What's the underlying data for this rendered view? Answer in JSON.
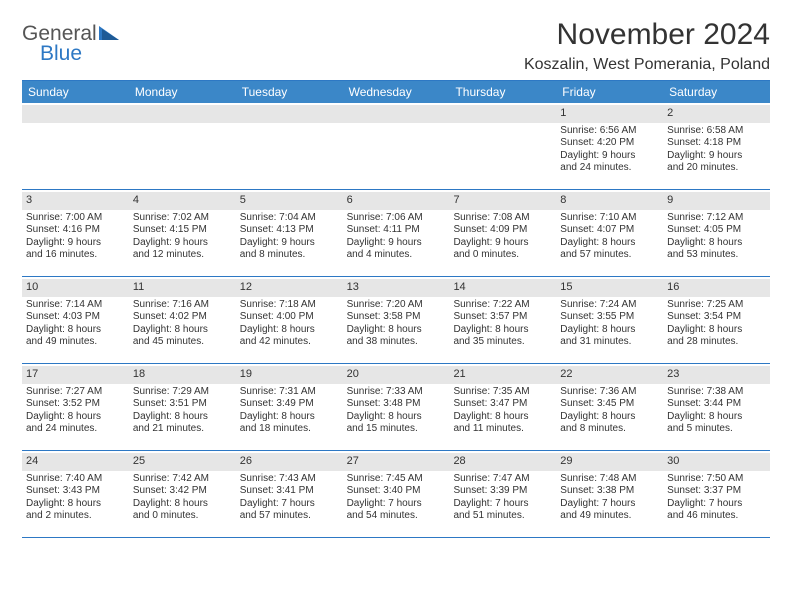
{
  "logo": {
    "text1": "General",
    "text2": "Blue",
    "triangle_color": "#2d78c4"
  },
  "title": "November 2024",
  "location": "Koszalin, West Pomerania, Poland",
  "colors": {
    "header_bg": "#3b87c8",
    "border": "#2d78c4",
    "daynum_bg": "#e6e6e6",
    "text": "#333333"
  },
  "day_names": [
    "Sunday",
    "Monday",
    "Tuesday",
    "Wednesday",
    "Thursday",
    "Friday",
    "Saturday"
  ],
  "weeks": [
    [
      {
        "n": "",
        "empty": true
      },
      {
        "n": "",
        "empty": true
      },
      {
        "n": "",
        "empty": true
      },
      {
        "n": "",
        "empty": true
      },
      {
        "n": "",
        "empty": true
      },
      {
        "n": "1",
        "sr": "Sunrise: 6:56 AM",
        "ss": "Sunset: 4:20 PM",
        "d1": "Daylight: 9 hours",
        "d2": "and 24 minutes."
      },
      {
        "n": "2",
        "sr": "Sunrise: 6:58 AM",
        "ss": "Sunset: 4:18 PM",
        "d1": "Daylight: 9 hours",
        "d2": "and 20 minutes."
      }
    ],
    [
      {
        "n": "3",
        "sr": "Sunrise: 7:00 AM",
        "ss": "Sunset: 4:16 PM",
        "d1": "Daylight: 9 hours",
        "d2": "and 16 minutes."
      },
      {
        "n": "4",
        "sr": "Sunrise: 7:02 AM",
        "ss": "Sunset: 4:15 PM",
        "d1": "Daylight: 9 hours",
        "d2": "and 12 minutes."
      },
      {
        "n": "5",
        "sr": "Sunrise: 7:04 AM",
        "ss": "Sunset: 4:13 PM",
        "d1": "Daylight: 9 hours",
        "d2": "and 8 minutes."
      },
      {
        "n": "6",
        "sr": "Sunrise: 7:06 AM",
        "ss": "Sunset: 4:11 PM",
        "d1": "Daylight: 9 hours",
        "d2": "and 4 minutes."
      },
      {
        "n": "7",
        "sr": "Sunrise: 7:08 AM",
        "ss": "Sunset: 4:09 PM",
        "d1": "Daylight: 9 hours",
        "d2": "and 0 minutes."
      },
      {
        "n": "8",
        "sr": "Sunrise: 7:10 AM",
        "ss": "Sunset: 4:07 PM",
        "d1": "Daylight: 8 hours",
        "d2": "and 57 minutes."
      },
      {
        "n": "9",
        "sr": "Sunrise: 7:12 AM",
        "ss": "Sunset: 4:05 PM",
        "d1": "Daylight: 8 hours",
        "d2": "and 53 minutes."
      }
    ],
    [
      {
        "n": "10",
        "sr": "Sunrise: 7:14 AM",
        "ss": "Sunset: 4:03 PM",
        "d1": "Daylight: 8 hours",
        "d2": "and 49 minutes."
      },
      {
        "n": "11",
        "sr": "Sunrise: 7:16 AM",
        "ss": "Sunset: 4:02 PM",
        "d1": "Daylight: 8 hours",
        "d2": "and 45 minutes."
      },
      {
        "n": "12",
        "sr": "Sunrise: 7:18 AM",
        "ss": "Sunset: 4:00 PM",
        "d1": "Daylight: 8 hours",
        "d2": "and 42 minutes."
      },
      {
        "n": "13",
        "sr": "Sunrise: 7:20 AM",
        "ss": "Sunset: 3:58 PM",
        "d1": "Daylight: 8 hours",
        "d2": "and 38 minutes."
      },
      {
        "n": "14",
        "sr": "Sunrise: 7:22 AM",
        "ss": "Sunset: 3:57 PM",
        "d1": "Daylight: 8 hours",
        "d2": "and 35 minutes."
      },
      {
        "n": "15",
        "sr": "Sunrise: 7:24 AM",
        "ss": "Sunset: 3:55 PM",
        "d1": "Daylight: 8 hours",
        "d2": "and 31 minutes."
      },
      {
        "n": "16",
        "sr": "Sunrise: 7:25 AM",
        "ss": "Sunset: 3:54 PM",
        "d1": "Daylight: 8 hours",
        "d2": "and 28 minutes."
      }
    ],
    [
      {
        "n": "17",
        "sr": "Sunrise: 7:27 AM",
        "ss": "Sunset: 3:52 PM",
        "d1": "Daylight: 8 hours",
        "d2": "and 24 minutes."
      },
      {
        "n": "18",
        "sr": "Sunrise: 7:29 AM",
        "ss": "Sunset: 3:51 PM",
        "d1": "Daylight: 8 hours",
        "d2": "and 21 minutes."
      },
      {
        "n": "19",
        "sr": "Sunrise: 7:31 AM",
        "ss": "Sunset: 3:49 PM",
        "d1": "Daylight: 8 hours",
        "d2": "and 18 minutes."
      },
      {
        "n": "20",
        "sr": "Sunrise: 7:33 AM",
        "ss": "Sunset: 3:48 PM",
        "d1": "Daylight: 8 hours",
        "d2": "and 15 minutes."
      },
      {
        "n": "21",
        "sr": "Sunrise: 7:35 AM",
        "ss": "Sunset: 3:47 PM",
        "d1": "Daylight: 8 hours",
        "d2": "and 11 minutes."
      },
      {
        "n": "22",
        "sr": "Sunrise: 7:36 AM",
        "ss": "Sunset: 3:45 PM",
        "d1": "Daylight: 8 hours",
        "d2": "and 8 minutes."
      },
      {
        "n": "23",
        "sr": "Sunrise: 7:38 AM",
        "ss": "Sunset: 3:44 PM",
        "d1": "Daylight: 8 hours",
        "d2": "and 5 minutes."
      }
    ],
    [
      {
        "n": "24",
        "sr": "Sunrise: 7:40 AM",
        "ss": "Sunset: 3:43 PM",
        "d1": "Daylight: 8 hours",
        "d2": "and 2 minutes."
      },
      {
        "n": "25",
        "sr": "Sunrise: 7:42 AM",
        "ss": "Sunset: 3:42 PM",
        "d1": "Daylight: 8 hours",
        "d2": "and 0 minutes."
      },
      {
        "n": "26",
        "sr": "Sunrise: 7:43 AM",
        "ss": "Sunset: 3:41 PM",
        "d1": "Daylight: 7 hours",
        "d2": "and 57 minutes."
      },
      {
        "n": "27",
        "sr": "Sunrise: 7:45 AM",
        "ss": "Sunset: 3:40 PM",
        "d1": "Daylight: 7 hours",
        "d2": "and 54 minutes."
      },
      {
        "n": "28",
        "sr": "Sunrise: 7:47 AM",
        "ss": "Sunset: 3:39 PM",
        "d1": "Daylight: 7 hours",
        "d2": "and 51 minutes."
      },
      {
        "n": "29",
        "sr": "Sunrise: 7:48 AM",
        "ss": "Sunset: 3:38 PM",
        "d1": "Daylight: 7 hours",
        "d2": "and 49 minutes."
      },
      {
        "n": "30",
        "sr": "Sunrise: 7:50 AM",
        "ss": "Sunset: 3:37 PM",
        "d1": "Daylight: 7 hours",
        "d2": "and 46 minutes."
      }
    ]
  ]
}
